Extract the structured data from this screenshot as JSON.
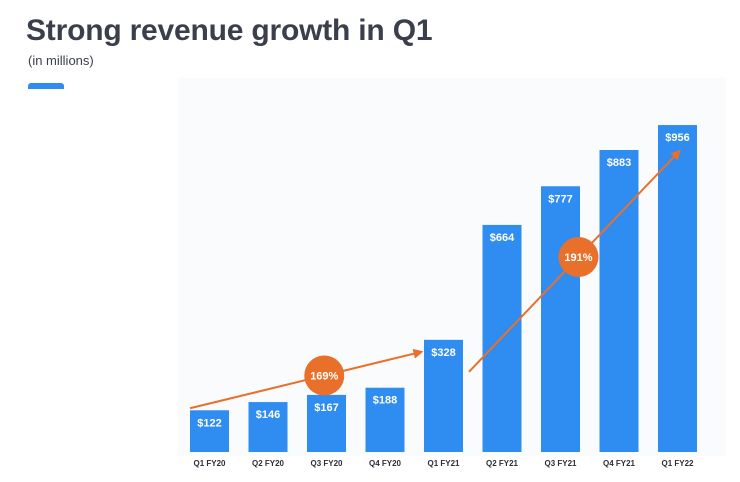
{
  "header": {
    "title": "Strong revenue growth in Q1",
    "subtitle": "(in millions)"
  },
  "colors": {
    "bar": "#2f8cf1",
    "arrow": "#e8702a",
    "text": "#3a3f4b",
    "panel": "#fafbfc"
  },
  "chart_data": {
    "type": "bar",
    "title": "Strong revenue growth in Q1",
    "subtitle": "(in millions)",
    "xlabel": "",
    "ylabel": "",
    "ylim": [
      0,
      1000
    ],
    "categories": [
      "Q1 FY20",
      "Q2 FY20",
      "Q3 FY20",
      "Q4 FY20",
      "Q1 FY21",
      "Q2 FY21",
      "Q3 FY21",
      "Q4 FY21",
      "Q1 FY22"
    ],
    "values": [
      122,
      146,
      167,
      188,
      328,
      664,
      777,
      883,
      956
    ],
    "labels": [
      "$122",
      "$146",
      "$167",
      "$188",
      "$328",
      "$664",
      "$777",
      "$883",
      "$956"
    ],
    "annotations": [
      {
        "text": "169%",
        "from": "Q1 FY20",
        "to": "Q1 FY21"
      },
      {
        "text": "191%",
        "from": "Q1 FY21",
        "to": "Q1 FY22"
      }
    ]
  }
}
